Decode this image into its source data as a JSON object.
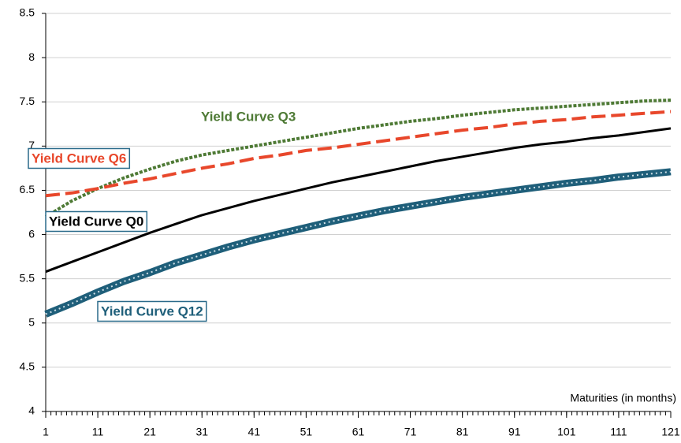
{
  "chart_data": {
    "type": "line",
    "x_label": "Maturities (in months)",
    "x": [
      1,
      6,
      11,
      16,
      21,
      26,
      31,
      36,
      41,
      46,
      51,
      56,
      61,
      66,
      71,
      76,
      81,
      86,
      91,
      96,
      101,
      106,
      111,
      116,
      121
    ],
    "xlim": [
      1,
      121
    ],
    "xticks": [
      1,
      11,
      21,
      31,
      41,
      51,
      61,
      71,
      81,
      91,
      101,
      111,
      121
    ],
    "ylim": [
      4,
      8.5
    ],
    "yticks": [
      4,
      4.5,
      5,
      5.5,
      6,
      6.5,
      7,
      7.5,
      8,
      8.5
    ],
    "grid": true,
    "series": [
      {
        "name": "Yield Curve Q0",
        "color": "#000000",
        "style": "solid",
        "values": [
          5.58,
          5.69,
          5.8,
          5.91,
          6.02,
          6.12,
          6.22,
          6.3,
          6.38,
          6.45,
          6.52,
          6.59,
          6.65,
          6.71,
          6.77,
          6.83,
          6.88,
          6.93,
          6.98,
          7.02,
          7.05,
          7.09,
          7.12,
          7.16,
          7.2
        ]
      },
      {
        "name": "Yield Curve Q3",
        "color": "#4e7a35",
        "style": "dotted",
        "values": [
          6.2,
          6.38,
          6.52,
          6.64,
          6.74,
          6.83,
          6.9,
          6.95,
          7.0,
          7.05,
          7.1,
          7.15,
          7.2,
          7.24,
          7.28,
          7.31,
          7.35,
          7.38,
          7.41,
          7.43,
          7.45,
          7.47,
          7.49,
          7.51,
          7.52
        ]
      },
      {
        "name": "Yield Curve Q6",
        "color": "#e8472b",
        "style": "dashed",
        "values": [
          6.44,
          6.47,
          6.52,
          6.58,
          6.63,
          6.69,
          6.75,
          6.8,
          6.86,
          6.9,
          6.95,
          6.98,
          7.02,
          7.06,
          7.1,
          7.14,
          7.18,
          7.21,
          7.25,
          7.28,
          7.3,
          7.33,
          7.35,
          7.37,
          7.39
        ]
      },
      {
        "name": "Yield Curve Q12",
        "color": "#1f5f7a",
        "style": "circles",
        "values": [
          5.1,
          5.22,
          5.35,
          5.47,
          5.57,
          5.68,
          5.77,
          5.86,
          5.94,
          6.01,
          6.08,
          6.15,
          6.21,
          6.27,
          6.32,
          6.37,
          6.42,
          6.46,
          6.5,
          6.54,
          6.58,
          6.61,
          6.65,
          6.68,
          6.71
        ]
      }
    ]
  }
}
